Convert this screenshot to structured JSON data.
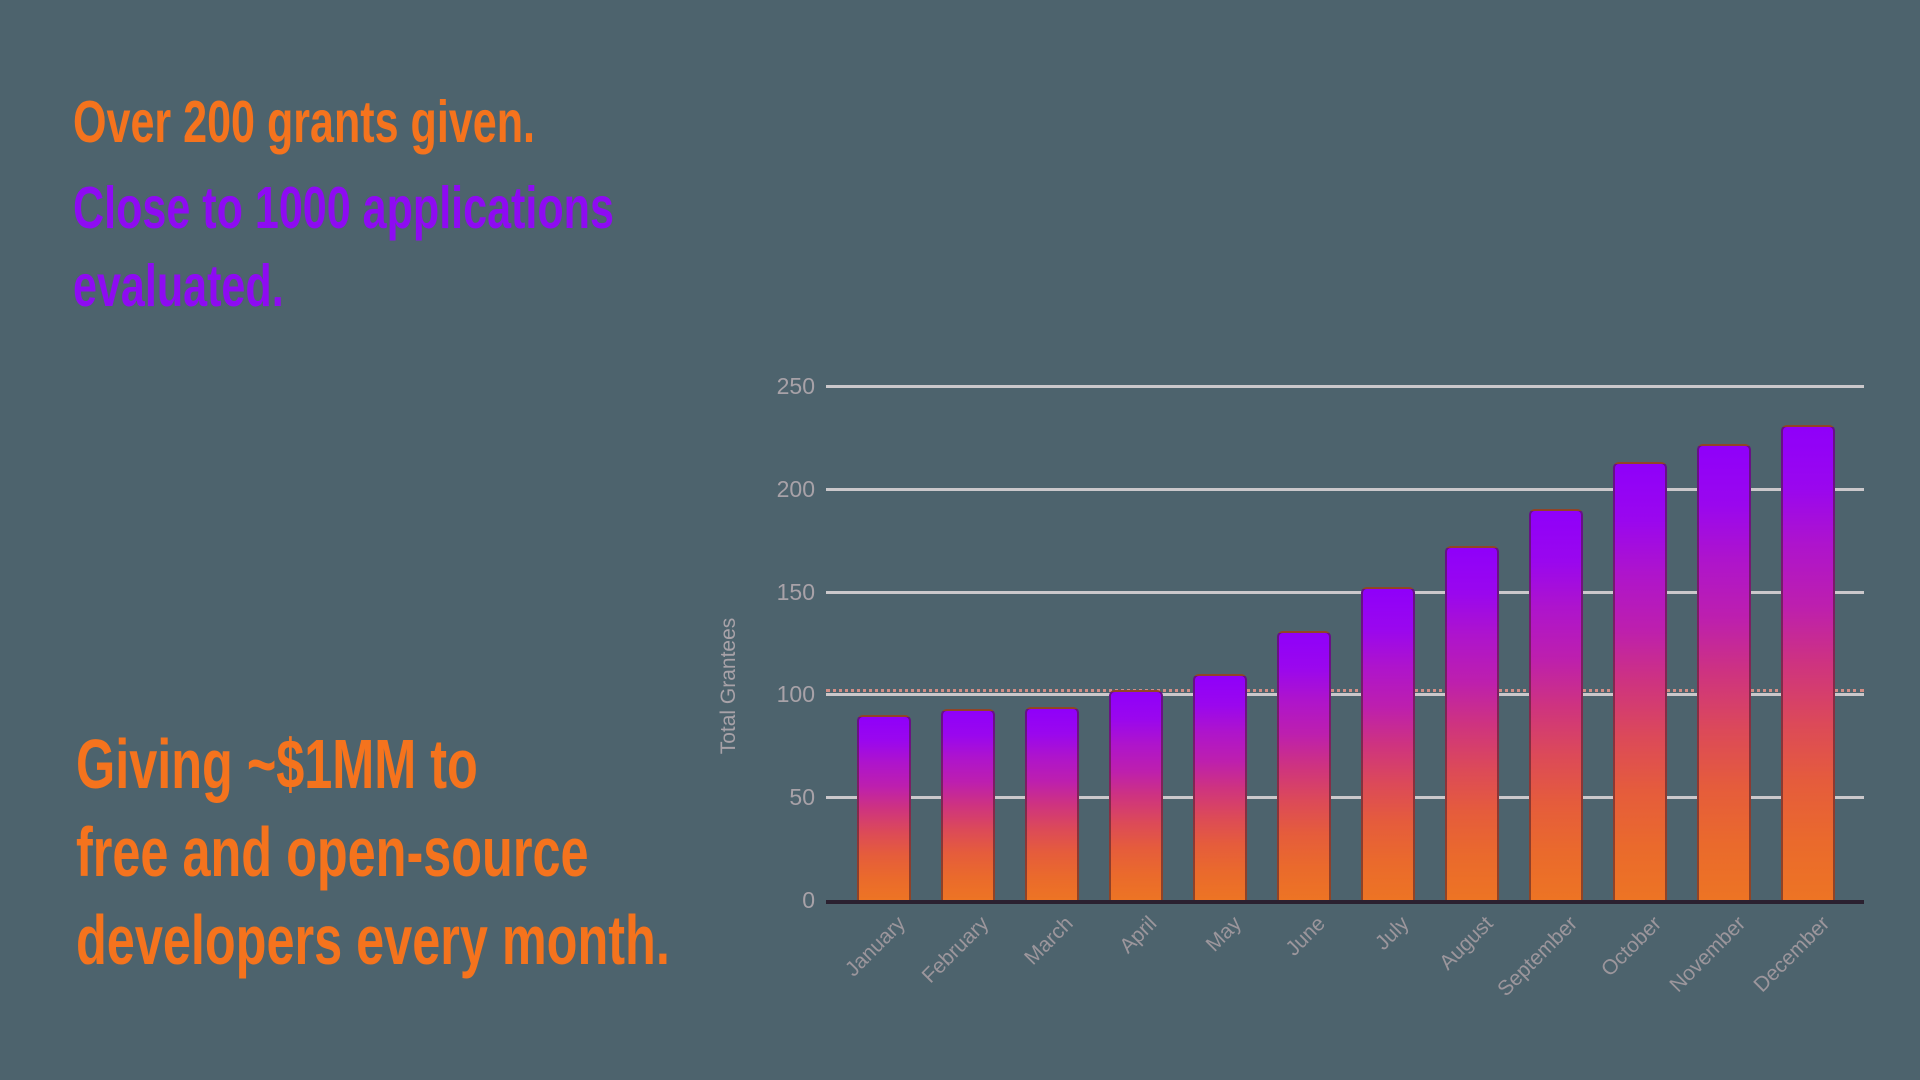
{
  "headlines": {
    "orange_top": "Over 200 grants given.",
    "purple_line1": "Close to 1000 applications",
    "purple_line2": "evaluated.",
    "footer_line1": "Giving ~$1MM to",
    "footer_line2": "free and open-source",
    "footer_line3": "developers every month."
  },
  "colors": {
    "background": "#4D636D",
    "orange_text": "#F5731D",
    "purple_text": "#8E0BF2",
    "grid_line": "#CBC8CB",
    "dashed_accent_line": "#D28D85",
    "axis_line": "#2B2130",
    "tick_label": "#A8A2A8",
    "month_label": "#9C969C",
    "axis_title": "#A8A2A8",
    "bar_border": "rgba(70,30,40,0.55)",
    "bar_gradient": [
      "#8F00FA",
      "#9A07EE",
      "#AE14CC",
      "#BD1FAE",
      "#CE3380",
      "#DC4A58",
      "#E55C3C",
      "#EA6A2C",
      "#ED7424"
    ]
  },
  "chart_data": {
    "type": "bar",
    "title": "",
    "xlabel": "",
    "ylabel": "Total Grantees",
    "categories": [
      "January",
      "February",
      "March",
      "April",
      "May",
      "June",
      "July",
      "August",
      "September",
      "October",
      "November",
      "December"
    ],
    "values": [
      90,
      93,
      94,
      102,
      110,
      131,
      152,
      172,
      190,
      213,
      222,
      231
    ],
    "ylim": [
      0,
      250
    ],
    "yticks": [
      0,
      50,
      100,
      150,
      200,
      250
    ],
    "grid": "horizontal",
    "legend": "none",
    "annotation_line": {
      "value": 100,
      "style": "dotted"
    }
  }
}
